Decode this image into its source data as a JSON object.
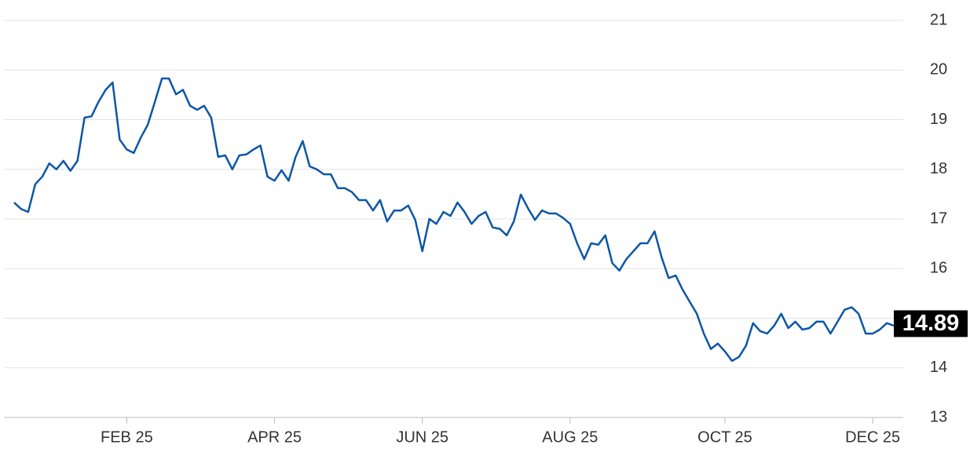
{
  "chart_data": {
    "type": "line",
    "color": "#0d56a6",
    "ylim": [
      13,
      21
    ],
    "yticks": [
      13,
      14,
      15,
      16,
      17,
      18,
      19,
      20,
      21
    ],
    "grid": true,
    "last_value": 14.89,
    "categories": [
      null,
      null,
      null,
      null,
      null,
      null,
      null,
      null,
      null,
      null,
      null,
      null,
      null,
      null,
      null,
      null,
      "FEB 25",
      null,
      null,
      null,
      null,
      null,
      null,
      null,
      null,
      null,
      null,
      null,
      null,
      null,
      null,
      null,
      null,
      null,
      null,
      null,
      null,
      "APR 25",
      null,
      null,
      null,
      null,
      null,
      null,
      null,
      null,
      null,
      null,
      null,
      null,
      null,
      null,
      null,
      null,
      null,
      null,
      null,
      null,
      "JUN 25",
      null,
      null,
      null,
      null,
      null,
      null,
      null,
      null,
      null,
      null,
      null,
      null,
      null,
      null,
      null,
      null,
      null,
      null,
      null,
      null,
      "AUG 25",
      null,
      null,
      null,
      null,
      null,
      null,
      null,
      null,
      null,
      null,
      null,
      null,
      null,
      null,
      null,
      null,
      null,
      null,
      null,
      null,
      null,
      "OCT 25",
      null,
      null,
      null,
      null,
      null,
      null,
      null,
      null,
      null,
      null,
      null,
      null,
      null,
      null,
      null,
      null,
      null,
      null,
      null,
      null,
      "DEC 25",
      null,
      null,
      null,
      null
    ],
    "values": [
      17.33,
      17.2,
      17.14,
      17.7,
      17.85,
      18.12,
      18.0,
      18.17,
      17.97,
      18.17,
      19.04,
      19.07,
      19.36,
      19.6,
      19.75,
      18.6,
      18.4,
      18.33,
      18.64,
      18.9,
      19.36,
      19.83,
      19.83,
      19.51,
      19.6,
      19.28,
      19.2,
      19.28,
      19.04,
      18.25,
      18.28,
      18.0,
      18.28,
      18.3,
      18.4,
      18.48,
      17.85,
      17.77,
      17.98,
      17.77,
      18.25,
      18.57,
      18.06,
      18.0,
      17.9,
      17.9,
      17.62,
      17.62,
      17.54,
      17.38,
      17.38,
      17.17,
      17.38,
      16.95,
      17.17,
      17.17,
      17.27,
      16.98,
      16.35,
      17.0,
      16.9,
      17.14,
      17.06,
      17.33,
      17.14,
      16.9,
      17.06,
      17.14,
      16.83,
      16.8,
      16.67,
      16.95,
      17.49,
      17.22,
      16.98,
      17.17,
      17.11,
      17.11,
      17.02,
      16.9,
      16.51,
      16.19,
      16.51,
      16.48,
      16.67,
      16.11,
      15.96,
      16.19,
      16.35,
      16.51,
      16.51,
      16.75,
      16.23,
      15.81,
      15.86,
      15.57,
      15.33,
      15.09,
      14.69,
      14.38,
      14.49,
      14.33,
      14.14,
      14.22,
      14.45,
      14.9,
      14.74,
      14.69,
      14.85,
      15.09,
      14.8,
      14.93,
      14.77,
      14.8,
      14.93,
      14.93,
      14.69,
      14.93,
      15.17,
      15.22,
      15.09,
      14.69,
      14.69,
      14.77,
      14.9,
      14.85,
      14.89
    ]
  }
}
